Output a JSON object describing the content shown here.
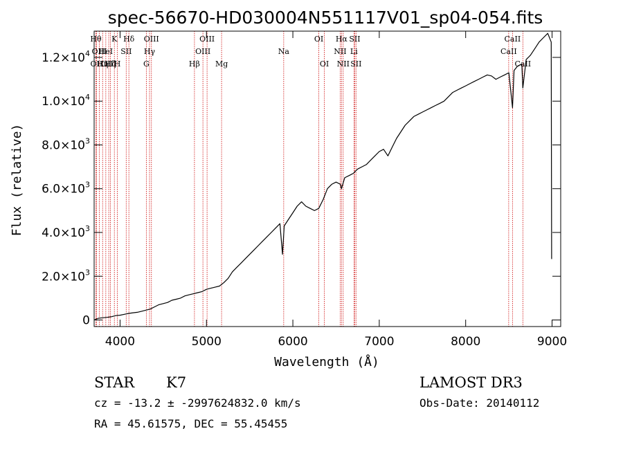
{
  "chart_data": {
    "type": "line",
    "title": "spec-56670-HD030004N551117V01_sp04-054.fits",
    "xlabel": "Wavelength (Å)",
    "ylabel": "Flux (relative)",
    "xlim": [
      3700,
      9100
    ],
    "ylim": [
      -300,
      13200
    ],
    "x_ticks": [
      {
        "value": 4000,
        "label": "4000"
      },
      {
        "value": 5000,
        "label": "5000"
      },
      {
        "value": 6000,
        "label": "6000"
      },
      {
        "value": 7000,
        "label": "7000"
      },
      {
        "value": 8000,
        "label": "8000"
      },
      {
        "value": 9000,
        "label": "9000"
      }
    ],
    "y_ticks": [
      {
        "value": 0,
        "mantissa": "0",
        "exp": ""
      },
      {
        "value": 2000,
        "mantissa": "2.0×10",
        "exp": "3"
      },
      {
        "value": 4000,
        "mantissa": "4.0×10",
        "exp": "3"
      },
      {
        "value": 6000,
        "mantissa": "6.0×10",
        "exp": "3"
      },
      {
        "value": 8000,
        "mantissa": "8.0×10",
        "exp": "3"
      },
      {
        "value": 10000,
        "mantissa": "1.0×10",
        "exp": "4"
      },
      {
        "value": 12000,
        "mantissa": "1.2×10",
        "exp": "4"
      }
    ],
    "series": [
      {
        "name": "spectrum",
        "points": [
          [
            3700,
            0
          ],
          [
            3750,
            80
          ],
          [
            3800,
            100
          ],
          [
            3850,
            120
          ],
          [
            3900,
            150
          ],
          [
            3950,
            200
          ],
          [
            4000,
            220
          ],
          [
            4050,
            260
          ],
          [
            4100,
            300
          ],
          [
            4150,
            330
          ],
          [
            4200,
            350
          ],
          [
            4250,
            400
          ],
          [
            4300,
            450
          ],
          [
            4350,
            500
          ],
          [
            4400,
            600
          ],
          [
            4450,
            700
          ],
          [
            4500,
            750
          ],
          [
            4550,
            800
          ],
          [
            4600,
            900
          ],
          [
            4650,
            950
          ],
          [
            4700,
            1000
          ],
          [
            4750,
            1100
          ],
          [
            4800,
            1150
          ],
          [
            4850,
            1200
          ],
          [
            4900,
            1250
          ],
          [
            4950,
            1300
          ],
          [
            5000,
            1400
          ],
          [
            5050,
            1450
          ],
          [
            5100,
            1500
          ],
          [
            5150,
            1550
          ],
          [
            5200,
            1700
          ],
          [
            5250,
            1900
          ],
          [
            5300,
            2200
          ],
          [
            5350,
            2400
          ],
          [
            5400,
            2600
          ],
          [
            5450,
            2800
          ],
          [
            5500,
            3000
          ],
          [
            5550,
            3200
          ],
          [
            5600,
            3400
          ],
          [
            5650,
            3600
          ],
          [
            5700,
            3800
          ],
          [
            5750,
            4000
          ],
          [
            5800,
            4200
          ],
          [
            5850,
            4400
          ],
          [
            5880,
            3000
          ],
          [
            5900,
            4300
          ],
          [
            5950,
            4600
          ],
          [
            6000,
            4900
          ],
          [
            6050,
            5200
          ],
          [
            6100,
            5400
          ],
          [
            6150,
            5200
          ],
          [
            6200,
            5100
          ],
          [
            6250,
            5000
          ],
          [
            6300,
            5100
          ],
          [
            6350,
            5500
          ],
          [
            6400,
            6000
          ],
          [
            6450,
            6200
          ],
          [
            6500,
            6300
          ],
          [
            6550,
            6200
          ],
          [
            6563,
            6000
          ],
          [
            6600,
            6500
          ],
          [
            6650,
            6600
          ],
          [
            6700,
            6700
          ],
          [
            6750,
            6900
          ],
          [
            6800,
            7000
          ],
          [
            6850,
            7100
          ],
          [
            6900,
            7300
          ],
          [
            6950,
            7500
          ],
          [
            7000,
            7700
          ],
          [
            7050,
            7800
          ],
          [
            7100,
            7500
          ],
          [
            7150,
            7900
          ],
          [
            7200,
            8300
          ],
          [
            7250,
            8600
          ],
          [
            7300,
            8900
          ],
          [
            7350,
            9100
          ],
          [
            7400,
            9300
          ],
          [
            7450,
            9400
          ],
          [
            7500,
            9500
          ],
          [
            7550,
            9600
          ],
          [
            7600,
            9700
          ],
          [
            7650,
            9800
          ],
          [
            7700,
            9900
          ],
          [
            7750,
            10000
          ],
          [
            7800,
            10200
          ],
          [
            7850,
            10400
          ],
          [
            7900,
            10500
          ],
          [
            7950,
            10600
          ],
          [
            8000,
            10700
          ],
          [
            8050,
            10800
          ],
          [
            8100,
            10900
          ],
          [
            8150,
            11000
          ],
          [
            8200,
            11100
          ],
          [
            8250,
            11200
          ],
          [
            8300,
            11150
          ],
          [
            8350,
            11000
          ],
          [
            8400,
            11100
          ],
          [
            8450,
            11200
          ],
          [
            8500,
            11300
          ],
          [
            8542,
            9700
          ],
          [
            8560,
            11400
          ],
          [
            8600,
            11600
          ],
          [
            8650,
            11700
          ],
          [
            8662,
            10600
          ],
          [
            8700,
            11900
          ],
          [
            8750,
            12100
          ],
          [
            8800,
            12400
          ],
          [
            8850,
            12700
          ],
          [
            8900,
            12900
          ],
          [
            8950,
            13100
          ],
          [
            8990,
            12700
          ],
          [
            8995,
            2800
          ],
          [
            9000,
            2800
          ]
        ]
      }
    ],
    "line_markers": [
      {
        "x": 3720,
        "label": "Hθ",
        "row": 0
      },
      {
        "x": 3727,
        "label": "OII",
        "row": 2
      },
      {
        "x": 3760,
        "label": "OIII",
        "row": 1
      },
      {
        "x": 3798,
        "label": "Hη",
        "row": 2
      },
      {
        "x": 3835,
        "label": "HeI",
        "row": 1
      },
      {
        "x": 3869,
        "label": "OIII",
        "row": 2
      },
      {
        "x": 3889,
        "label": "Hζ",
        "row": 2
      },
      {
        "x": 3934,
        "label": "K",
        "row": 0
      },
      {
        "x": 3969,
        "label": "H",
        "row": 2
      },
      {
        "x": 4071,
        "label": "SII",
        "row": 1
      },
      {
        "x": 4102,
        "label": "Hδ",
        "row": 0
      },
      {
        "x": 4304,
        "label": "G",
        "row": 2
      },
      {
        "x": 4341,
        "label": "Hγ",
        "row": 1
      },
      {
        "x": 4363,
        "label": "OIII",
        "row": 0
      },
      {
        "x": 4861,
        "label": "Hβ",
        "row": 2
      },
      {
        "x": 4959,
        "label": "OIII",
        "row": 1
      },
      {
        "x": 5007,
        "label": "OIII",
        "row": 0
      },
      {
        "x": 5175,
        "label": "Mg",
        "row": 2
      },
      {
        "x": 5894,
        "label": "Na",
        "row": 1
      },
      {
        "x": 6300,
        "label": "OI",
        "row": 0
      },
      {
        "x": 6364,
        "label": "OI",
        "row": 2
      },
      {
        "x": 6548,
        "label": "NII",
        "row": 1
      },
      {
        "x": 6563,
        "label": "Hα",
        "row": 0
      },
      {
        "x": 6583,
        "label": "NII",
        "row": 2
      },
      {
        "x": 6707,
        "label": "Li",
        "row": 1
      },
      {
        "x": 6716,
        "label": "SII",
        "row": 0
      },
      {
        "x": 6731,
        "label": "SII",
        "row": 2
      },
      {
        "x": 8498,
        "label": "CaII",
        "row": 1
      },
      {
        "x": 8542,
        "label": "CaII",
        "row": 0
      },
      {
        "x": 8662,
        "label": "CaII",
        "row": 2
      }
    ]
  },
  "info": {
    "class": "STAR",
    "subclass": "K7",
    "survey": "LAMOST DR3",
    "cz_line": "cz = -13.2 ± -2997624832.0 km/s",
    "obs_date": "Obs-Date: 20140112",
    "radec_line": "RA =  45.61575, DEC =  55.45455"
  },
  "colors": {
    "spectrum": "#000000",
    "marker_line": "#cc0000",
    "axes": "#000000"
  }
}
